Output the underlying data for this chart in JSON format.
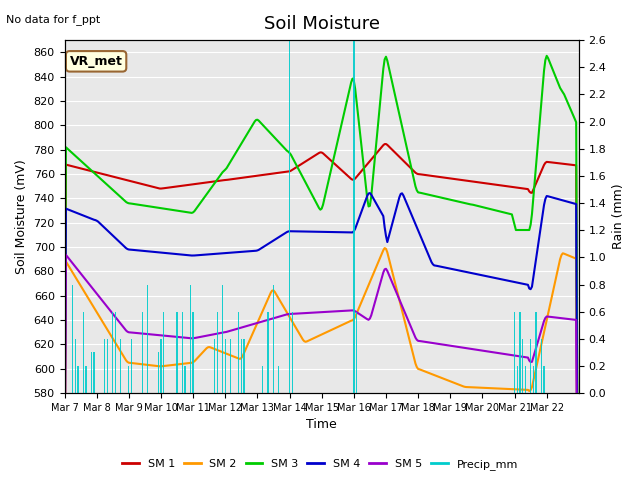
{
  "title": "Soil Moisture",
  "top_left_text": "No data for f_ppt",
  "annotation_text": "VR_met",
  "xlabel": "Time",
  "ylabel_left": "Soil Moisture (mV)",
  "ylabel_right": "Rain (mm)",
  "ylim_left": [
    580,
    870
  ],
  "ylim_right": [
    0.0,
    2.6
  ],
  "yticks_left": [
    580,
    600,
    620,
    640,
    660,
    680,
    700,
    720,
    740,
    760,
    780,
    800,
    820,
    840,
    860
  ],
  "yticks_right": [
    0.0,
    0.2,
    0.4,
    0.6,
    0.8,
    1.0,
    1.2,
    1.4,
    1.6,
    1.8,
    2.0,
    2.2,
    2.4,
    2.6
  ],
  "xtick_labels": [
    "Mar 7",
    "Mar 8",
    "Mar 9",
    "Mar 10",
    "Mar 11",
    "Mar 12",
    "Mar 13",
    "Mar 14",
    "Mar 15",
    "Mar 16",
    "Mar 17",
    "Mar 18",
    "Mar 19",
    "Mar 20",
    "Mar 21",
    "Mar 22"
  ],
  "colors": {
    "SM1": "#cc0000",
    "SM2": "#ff9900",
    "SM3": "#00cc00",
    "SM4": "#0000cc",
    "SM5": "#9900cc",
    "Precip": "#00cccc"
  },
  "legend_labels": [
    "SM 1",
    "SM 2",
    "SM 3",
    "SM 4",
    "SM 5",
    "Precip_mm"
  ],
  "bg_color": "#e8e8e8",
  "grid_color": "#ffffff"
}
